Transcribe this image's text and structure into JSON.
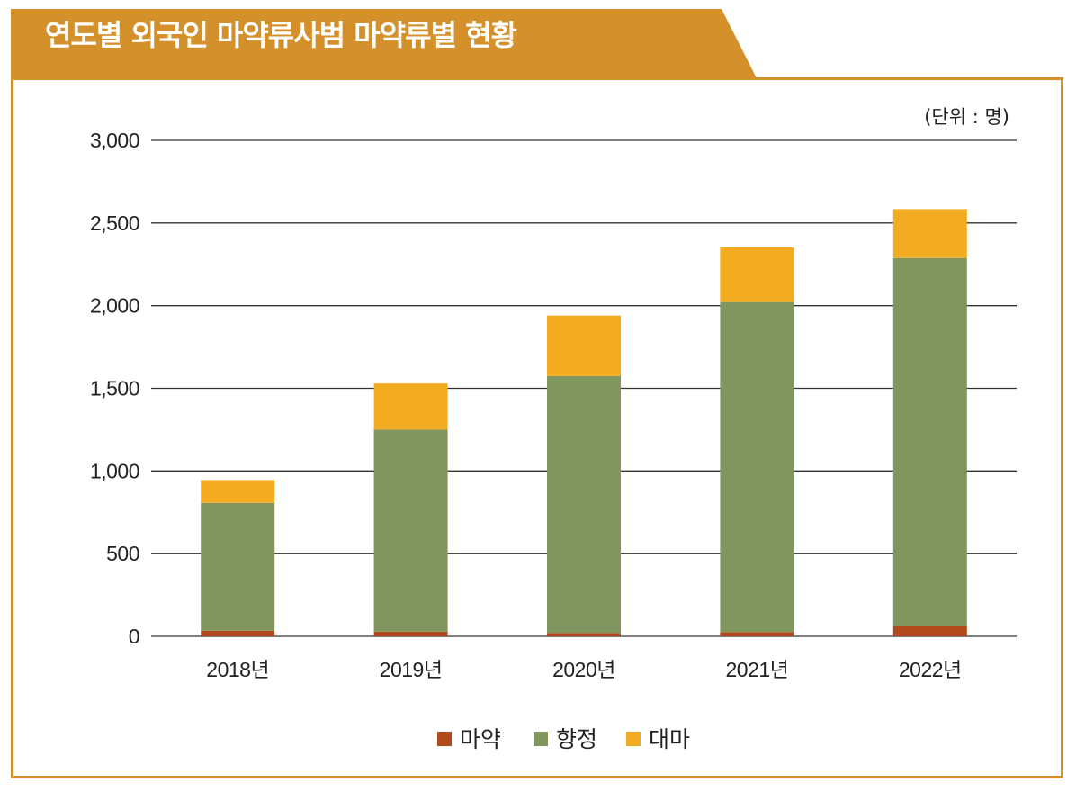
{
  "title": "연도별 외국인 마약류사범  마약류별 현황",
  "colors": {
    "accent": "#d4902b",
    "마약": "#b04a1a",
    "향정": "#80965e",
    "대마": "#f3ac22"
  },
  "chart_data": {
    "type": "bar",
    "stacked": true,
    "unit_label": "(단위 : 명)",
    "categories": [
      "2018년",
      "2019년",
      "2020년",
      "2021년",
      "2022년"
    ],
    "series": [
      {
        "name": "마약",
        "values": [
          34,
          28,
          20,
          26,
          60
        ]
      },
      {
        "name": "향정",
        "values": [
          773,
          1222,
          1554,
          1996,
          2228
        ]
      },
      {
        "name": "대마",
        "values": [
          138,
          279,
          366,
          330,
          296
        ]
      }
    ],
    "ylim": [
      0,
      3000
    ],
    "yticks": [
      0,
      500,
      1000,
      1500,
      2000,
      2500,
      3000
    ],
    "ytick_labels": [
      "0",
      "500",
      "1,000",
      "1,500",
      "2,000",
      "2,500",
      "3,000"
    ],
    "grid": true,
    "legend_position": "bottom"
  }
}
